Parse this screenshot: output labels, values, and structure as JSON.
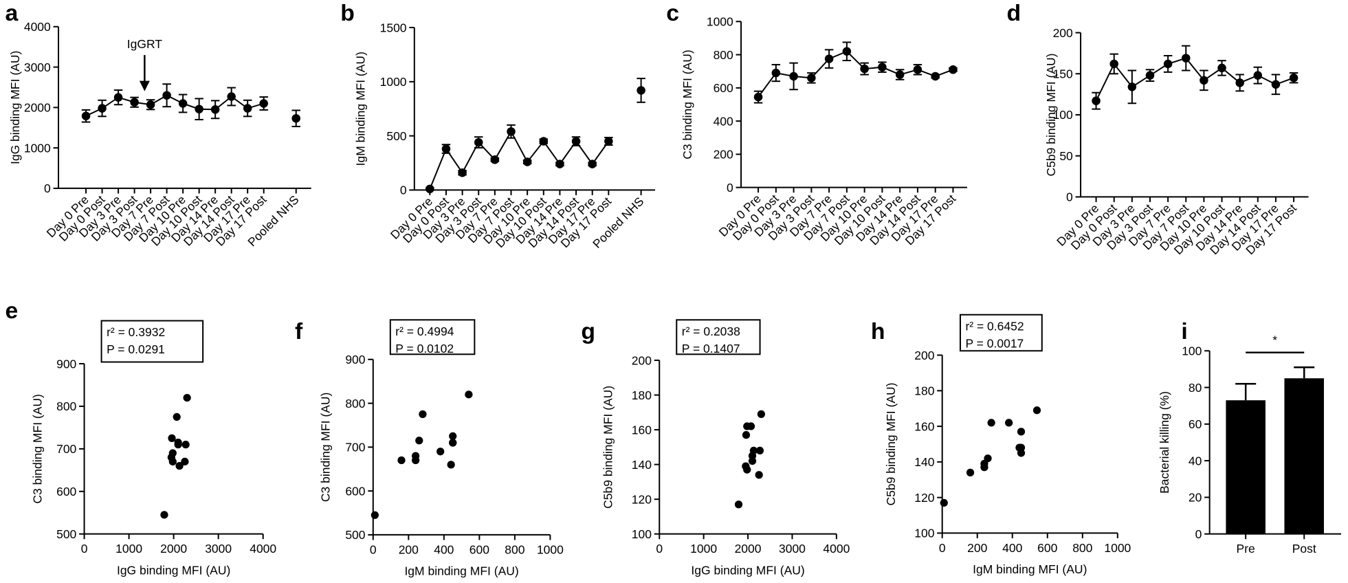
{
  "chart_data": [
    {
      "type": "line",
      "panel": "a",
      "y_label": "IgG binding MFI (AU)",
      "annotation": "IgGRT",
      "categories": [
        "Day 0 Pre",
        "Day 0 Post",
        "Day 3 Pre",
        "Day 3 Post",
        "Day 7 Pre",
        "Day 7 Post",
        "Day 10 Pre",
        "Day 10 Post",
        "Day 14 Pre",
        "Day 14 Post",
        "Day 17 Pre",
        "Day 17 Post",
        null,
        "Pooled NHS"
      ],
      "values": [
        1790,
        1980,
        2250,
        2130,
        2070,
        2300,
        2100,
        1960,
        1950,
        2270,
        1980,
        2100,
        null,
        1730
      ],
      "errors": [
        150,
        200,
        180,
        120,
        120,
        280,
        220,
        260,
        220,
        220,
        200,
        160,
        null,
        200
      ],
      "color": "#000000",
      "ylim": [
        0,
        4000
      ],
      "yticks": [
        0,
        1000,
        2000,
        3000,
        4000
      ]
    },
    {
      "type": "line",
      "panel": "b",
      "y_label": "IgM binding MFI (AU)",
      "categories": [
        "Day 0 Pre",
        "Day 0 Post",
        "Day 3 Pre",
        "Day 3 Post",
        "Day 7 Pre",
        "Day 7 Post",
        "Day 10 Pre",
        "Day 10 Post",
        "Day 14 Pre",
        "Day 14 Post",
        "Day 17 Pre",
        "Day 17 Post",
        null,
        "Pooled NHS"
      ],
      "values": [
        10,
        380,
        160,
        440,
        280,
        540,
        260,
        450,
        240,
        450,
        240,
        450,
        null,
        920
      ],
      "errors": [
        10,
        40,
        20,
        50,
        15,
        60,
        15,
        20,
        15,
        40,
        15,
        35,
        null,
        110
      ],
      "color": "#000000",
      "ylim": [
        0,
        1500
      ],
      "yticks": [
        0,
        500,
        1000,
        1500
      ]
    },
    {
      "type": "line",
      "panel": "c",
      "y_label": "C3 binding MFI (AU)",
      "categories": [
        "Day 0 Pre",
        "Day 0 Post",
        "Day 3 Pre",
        "Day 3 Post",
        "Day 7 Pre",
        "Day 7 Post",
        "Day 10 Pre",
        "Day 10 Post",
        "Day 14 Pre",
        "Day 14 Post",
        "Day 17 Pre",
        "Day 17 Post"
      ],
      "values": [
        545,
        690,
        670,
        660,
        775,
        820,
        715,
        725,
        680,
        710,
        670,
        710
      ],
      "errors": [
        35,
        50,
        80,
        30,
        55,
        55,
        35,
        30,
        30,
        30,
        10,
        10
      ],
      "color": "#000000",
      "ylim": [
        0,
        1000
      ],
      "yticks": [
        0,
        200,
        400,
        600,
        800,
        1000
      ]
    },
    {
      "type": "line",
      "panel": "d",
      "y_label": "C5b9 binding MFI (AU)",
      "categories": [
        "Day 0 Pre",
        "Day 0 Post",
        "Day 3 Pre",
        "Day 3 Post",
        "Day 7 Pre",
        "Day 7 Post",
        "Day 10 Pre",
        "Day 10 Post",
        "Day 14 Pre",
        "Day 14 Post",
        "Day 17 Pre",
        "Day 17 Post"
      ],
      "values": [
        117,
        162,
        134,
        148,
        162,
        169,
        142,
        157,
        139,
        148,
        137,
        145
      ],
      "errors": [
        10,
        12,
        20,
        7,
        10,
        15,
        12,
        9,
        10,
        10,
        12,
        6
      ],
      "color": "#000000",
      "ylim": [
        0,
        200
      ],
      "yticks": [
        0,
        50,
        100,
        150,
        200
      ]
    },
    {
      "type": "scatter",
      "panel": "e",
      "x_label": "IgG binding MFI (AU)",
      "y_label": "C3 binding MFI (AU)",
      "annotation": [
        "r² = 0.3932",
        "P = 0.0291"
      ],
      "x": [
        1790,
        1980,
        2250,
        2130,
        2070,
        2300,
        2100,
        1960,
        1950,
        2270,
        1980,
        2100
      ],
      "y": [
        545,
        690,
        670,
        660,
        775,
        820,
        715,
        725,
        680,
        710,
        670,
        710
      ],
      "color": "#000000",
      "xlim": [
        0,
        4000
      ],
      "xticks": [
        0,
        1000,
        2000,
        3000,
        4000
      ],
      "ylim": [
        500,
        900
      ],
      "yticks": [
        500,
        600,
        700,
        800,
        900
      ]
    },
    {
      "type": "scatter",
      "panel": "f",
      "x_label": "IgM binding MFI (AU)",
      "y_label": "C3 binding MFI (AU)",
      "annotation": [
        "r² = 0.4994",
        "P = 0.0102"
      ],
      "x": [
        10,
        380,
        160,
        440,
        280,
        540,
        260,
        450,
        240,
        450,
        240,
        450
      ],
      "y": [
        545,
        690,
        670,
        660,
        775,
        820,
        715,
        725,
        680,
        710,
        670,
        710
      ],
      "color": "#000000",
      "xlim": [
        0,
        1000
      ],
      "xticks": [
        0,
        200,
        400,
        600,
        800,
        1000
      ],
      "ylim": [
        500,
        900
      ],
      "yticks": [
        500,
        600,
        700,
        800,
        900
      ]
    },
    {
      "type": "scatter",
      "panel": "g",
      "x_label": "IgG binding MFI (AU)",
      "y_label": "C5b9 binding MFI (AU)",
      "annotation": [
        "r² = 0.2038",
        "P = 0.1407"
      ],
      "x": [
        1790,
        1980,
        2250,
        2130,
        2070,
        2300,
        2100,
        1960,
        1950,
        2270,
        1980,
        2100
      ],
      "y": [
        117,
        162,
        134,
        148,
        162,
        169,
        142,
        157,
        139,
        148,
        137,
        145
      ],
      "color": "#000000",
      "xlim": [
        0,
        4000
      ],
      "xticks": [
        0,
        1000,
        2000,
        3000,
        4000
      ],
      "ylim": [
        100,
        200
      ],
      "yticks": [
        100,
        120,
        140,
        160,
        180,
        200
      ]
    },
    {
      "type": "scatter",
      "panel": "h",
      "x_label": "IgM binding MFI (AU)",
      "y_label": "C5b9 binding MFI (AU)",
      "annotation": [
        "r² = 0.6452",
        "P = 0.0017"
      ],
      "x": [
        10,
        380,
        160,
        440,
        280,
        540,
        260,
        450,
        240,
        450,
        240,
        450
      ],
      "y": [
        117,
        162,
        134,
        148,
        162,
        169,
        142,
        157,
        139,
        148,
        137,
        145
      ],
      "color": "#000000",
      "xlim": [
        0,
        1000
      ],
      "xticks": [
        0,
        200,
        400,
        600,
        800,
        1000
      ],
      "ylim": [
        100,
        200
      ],
      "yticks": [
        100,
        120,
        140,
        160,
        180,
        200
      ]
    },
    {
      "type": "bar",
      "panel": "i",
      "y_label": "Bacterial killing (%)",
      "annotation": "*",
      "categories": [
        "Pre",
        "Post"
      ],
      "values": [
        73,
        85
      ],
      "errors": [
        9,
        6
      ],
      "color": "#000000",
      "ylim": [
        0,
        100
      ],
      "yticks": [
        0,
        20,
        40,
        60,
        80,
        100
      ]
    }
  ]
}
